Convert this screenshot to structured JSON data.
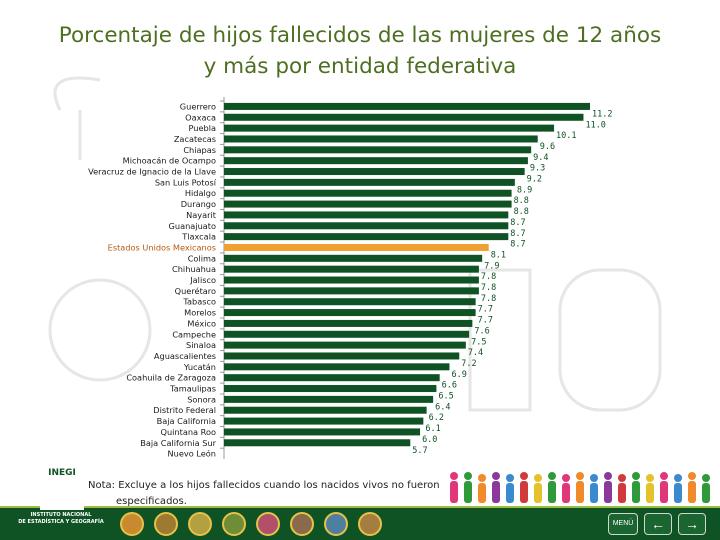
{
  "title": {
    "line1": "Porcentaje de hijos fallecidos de las mujeres de 12 años",
    "line2": "y más por entidad federativa"
  },
  "chart_data": {
    "type": "bar",
    "orientation": "horizontal",
    "categories": [
      "Guerrero",
      "Oaxaca",
      "Puebla",
      "Zacatecas",
      "Chiapas",
      "Michoacán de Ocampo",
      "Veracruz de Ignacio de la Llave",
      "San Luis Potosí",
      "Hidalgo",
      "Durango",
      "Nayarit",
      "Guanajuato",
      "Tlaxcala",
      "Estados Unidos Mexicanos",
      "Colima",
      "Chihuahua",
      "Jalisco",
      "Querétaro",
      "Tabasco",
      "Morelos",
      "México",
      "Campeche",
      "Sinaloa",
      "Aguascalientes",
      "Yucatán",
      "Coahuila de Zaragoza",
      "Tamaulipas",
      "Sonora",
      "Distrito Federal",
      "Baja California",
      "Quintana Roo",
      "Baja California Sur",
      "Nuevo León"
    ],
    "values": [
      11.2,
      11.0,
      10.1,
      9.6,
      9.4,
      9.3,
      9.2,
      8.9,
      8.8,
      8.8,
      8.7,
      8.7,
      8.7,
      8.1,
      7.9,
      7.8,
      7.8,
      7.8,
      7.7,
      7.7,
      7.6,
      7.5,
      7.4,
      7.2,
      6.9,
      6.6,
      6.5,
      6.4,
      6.2,
      6.1,
      6.0,
      5.7,
      null
    ],
    "value_labels": [
      "11.2",
      "11.0",
      "10.1",
      "9.6",
      "9.4",
      "9.3",
      "9.2",
      "8.9",
      "8.8",
      "8.8",
      "8.7",
      "8.7",
      "8.7",
      "8.1",
      "7.9",
      "7.8",
      "7.8",
      "7.8",
      "7.7",
      "7.7",
      "7.6",
      "7.5",
      "7.4",
      "7.2",
      "6.9",
      "6.6",
      "6.5",
      "6.4",
      "6.2",
      "6.1",
      "6.0",
      "5.7",
      ""
    ],
    "highlight_category": "Estados Unidos Mexicanos",
    "xlim": [
      0,
      11.2
    ],
    "colors": {
      "bar": "#0f5223",
      "highlight": "#f0a030",
      "label": "#0f5223"
    },
    "grid": false
  },
  "note": {
    "line1": "Nota: Excluye a los hijos fallecidos cuando los nacidos vivos no fueron",
    "line2": "especificados."
  },
  "footer": {
    "logo_text": "INEGI",
    "inst_line1": "INSTITUTO NACIONAL",
    "inst_line2": "DE ESTADÍSTICA Y GEOGRAFÍA",
    "menu_label": "MENÚ",
    "prev_icon": "←",
    "next_icon": "→"
  }
}
